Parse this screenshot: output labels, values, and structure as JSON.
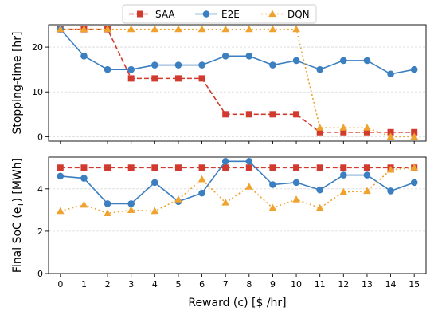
{
  "chart_data": [
    {
      "type": "line",
      "title": "",
      "xlabel": "",
      "ylabel": "Stopping-time [hr]",
      "x": [
        0,
        1,
        2,
        3,
        4,
        5,
        6,
        7,
        8,
        9,
        10,
        11,
        12,
        13,
        14,
        15
      ],
      "xlim": [
        -0.5,
        15.5
      ],
      "ylim": [
        -1,
        25
      ],
      "yticks": [
        0,
        10,
        20
      ],
      "grid": "horizontal dashed",
      "series": [
        {
          "name": "SAA",
          "color": "#d13b2f",
          "marker": "square",
          "linestyle": "dashed",
          "values": [
            24,
            24,
            24,
            13,
            13,
            13,
            13,
            5,
            5,
            5,
            5,
            1,
            1,
            1,
            1,
            1
          ]
        },
        {
          "name": "E2E",
          "color": "#3b7fc0",
          "marker": "circle",
          "linestyle": "solid",
          "values": [
            24,
            18,
            15,
            15,
            16,
            16,
            16,
            18,
            18,
            16,
            17,
            15,
            17,
            17,
            14,
            15
          ]
        },
        {
          "name": "DQN",
          "color": "#f0a22e",
          "marker": "triangle",
          "linestyle": "dotted",
          "values": [
            24,
            24,
            24,
            24,
            24,
            24,
            24,
            24,
            24,
            24,
            24,
            2,
            2,
            2,
            0,
            0
          ]
        }
      ]
    },
    {
      "type": "line",
      "title": "",
      "xlabel": "Reward (c) [$ /hr]",
      "ylabel": "Final SoC (e",
      "ylabel_sub": "T",
      "ylabel_end": ") [MWh]",
      "x": [
        0,
        1,
        2,
        3,
        4,
        5,
        6,
        7,
        8,
        9,
        10,
        11,
        12,
        13,
        14,
        15
      ],
      "xlim": [
        -0.5,
        15.5
      ],
      "ylim": [
        0,
        5.5
      ],
      "yticks": [
        0,
        2,
        4
      ],
      "grid": "horizontal dashed",
      "series": [
        {
          "name": "SAA",
          "color": "#d13b2f",
          "marker": "square",
          "linestyle": "dashed",
          "values": [
            5,
            5,
            5,
            5,
            5,
            5,
            5,
            5,
            5,
            5,
            5,
            5,
            5,
            5,
            5,
            5
          ]
        },
        {
          "name": "E2E",
          "color": "#3b7fc0",
          "marker": "circle",
          "linestyle": "solid",
          "values": [
            4.6,
            4.5,
            3.3,
            3.3,
            4.3,
            3.4,
            3.8,
            5.3,
            5.3,
            4.2,
            4.3,
            3.95,
            4.65,
            4.65,
            3.9,
            4.3
          ]
        },
        {
          "name": "DQN",
          "color": "#f0a22e",
          "marker": "triangle",
          "linestyle": "dotted",
          "values": [
            2.95,
            3.25,
            2.85,
            3.0,
            2.95,
            3.5,
            4.45,
            3.35,
            4.1,
            3.1,
            3.5,
            3.1,
            3.85,
            3.9,
            4.9,
            5.0
          ]
        }
      ]
    }
  ],
  "legend": {
    "placement": "top-center",
    "entries": [
      {
        "label": "SAA",
        "color": "#d13b2f",
        "marker": "square",
        "linestyle": "dashed"
      },
      {
        "label": "E2E",
        "color": "#3b7fc0",
        "marker": "circle",
        "linestyle": "solid"
      },
      {
        "label": "DQN",
        "color": "#f0a22e",
        "marker": "triangle",
        "linestyle": "dotted"
      }
    ]
  }
}
